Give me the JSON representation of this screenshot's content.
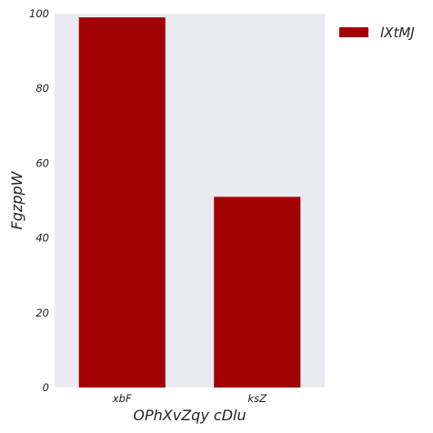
{
  "chart_data": {
    "type": "bar",
    "categories": [
      "xbF",
      "ksZ"
    ],
    "series": [
      {
        "name": "lXtMJ",
        "values": [
          99,
          51
        ],
        "color": "#a00000"
      }
    ],
    "xlabel": "OPhXvZqy cDlu",
    "ylabel": "FgzppW",
    "ylim": [
      0,
      100
    ],
    "yticks": [
      0,
      20,
      40,
      60,
      80,
      100
    ],
    "grid": false,
    "legend_position": "top-right-outside",
    "background_color": "#eaeaf2"
  }
}
